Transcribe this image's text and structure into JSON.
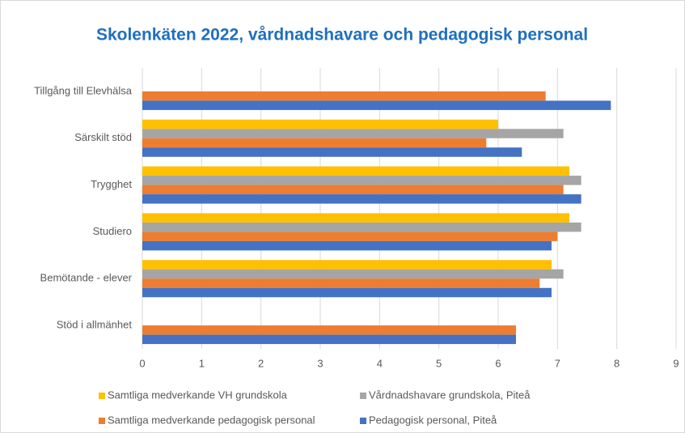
{
  "chart_data": {
    "type": "bar",
    "orientation": "horizontal",
    "title": "Skolenkäten 2022, vårdnadshavare och pedagogisk personal",
    "categories": [
      "Tillgång till Elevhälsa",
      "Särskilt stöd",
      "Trygghet",
      "Studiero",
      "Bemötande - elever",
      "Stöd i allmänhet"
    ],
    "series": [
      {
        "name": "Samtliga medverkande VH grundskola",
        "color": "#ffc000",
        "values": [
          null,
          6.0,
          7.2,
          7.2,
          6.9,
          null
        ]
      },
      {
        "name": "Vårdnadshavare grundskola, Piteå",
        "color": "#a5a5a5",
        "values": [
          null,
          7.1,
          7.4,
          7.4,
          7.1,
          null
        ]
      },
      {
        "name": "Samtliga medverkande pedagogisk personal",
        "color": "#ed7d31",
        "values": [
          6.8,
          5.8,
          7.1,
          7.0,
          6.7,
          6.3
        ]
      },
      {
        "name": "Pedagogisk personal, Piteå",
        "color": "#4472c4",
        "values": [
          7.9,
          6.4,
          7.4,
          6.9,
          6.9,
          6.3
        ]
      }
    ],
    "xlim": [
      0,
      9
    ],
    "xticks": [
      0,
      1,
      2,
      3,
      4,
      5,
      6,
      7,
      8,
      9
    ],
    "grid": true,
    "legend": "bottom"
  }
}
